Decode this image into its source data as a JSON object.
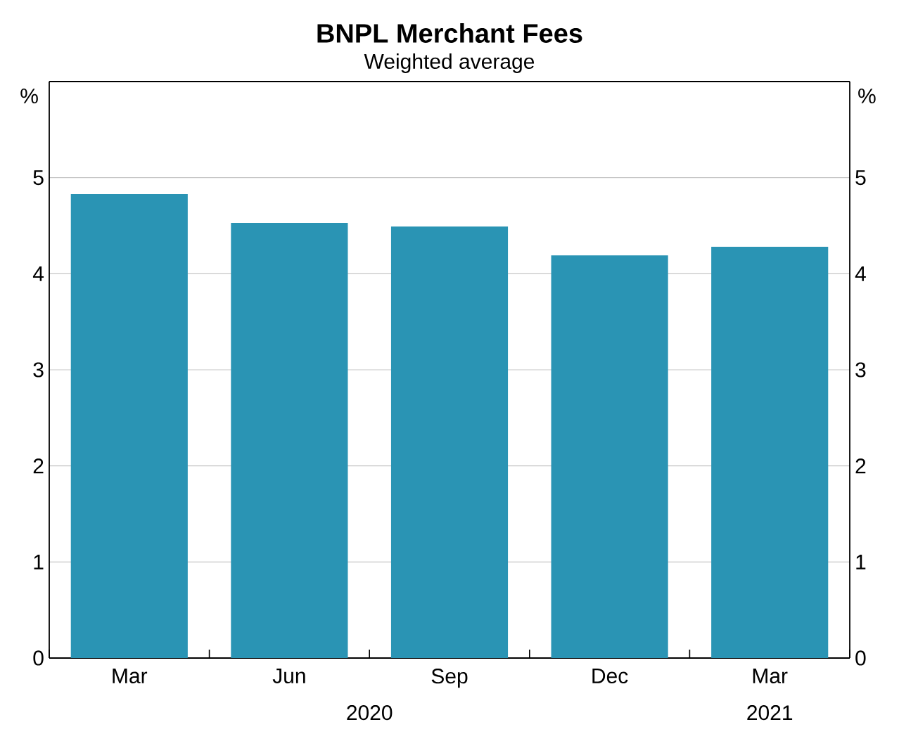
{
  "chart_data": {
    "type": "bar",
    "title": "BNPL Merchant Fees",
    "subtitle": "Weighted average",
    "ylabel": "%",
    "y2label": "%",
    "categories": [
      "Mar",
      "Jun",
      "Sep",
      "Dec",
      "Mar"
    ],
    "values": [
      4.83,
      4.53,
      4.49,
      4.19,
      4.28
    ],
    "color": "#2a94b4",
    "ylim": [
      0,
      6
    ],
    "yticks": [
      0,
      1,
      2,
      3,
      4,
      5
    ],
    "y2lim": [
      0,
      6
    ],
    "y2ticks": [
      0,
      1,
      2,
      3,
      4,
      5
    ],
    "grid": "y",
    "annotations": [
      "2020",
      "2021"
    ]
  }
}
